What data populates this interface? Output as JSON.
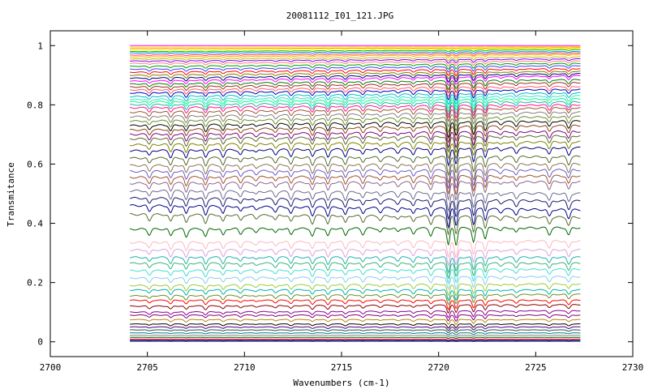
{
  "chart_data": {
    "type": "line",
    "title": "20081112_I01_121.JPG",
    "xlabel": "Wavenumbers (cm-1)",
    "ylabel": "Transmitance",
    "xlim": [
      2700,
      2730
    ],
    "ylim": [
      -0.05,
      1.05
    ],
    "x_ticks": [
      "2700",
      "2705",
      "2710",
      "2715",
      "2720",
      "2725",
      "2730"
    ],
    "y_ticks": [
      "0",
      "0.2",
      "0.4",
      "0.6",
      "0.8",
      "1"
    ],
    "x_range": [
      2704.1,
      2727.3
    ],
    "grid": false,
    "legend": "none",
    "absorption_lines_cm1": [
      2705.1,
      2706.2,
      2707.0,
      2708.0,
      2708.9,
      2709.8,
      2710.6,
      2711.6,
      2712.4,
      2713.5,
      2714.3,
      2715.2,
      2716.1,
      2717.0,
      2717.9,
      2718.7,
      2719.6,
      2720.5,
      2720.9,
      2721.8,
      2722.4,
      2723.2,
      2724.0,
      2725.7,
      2726.7
    ],
    "series_baselines": [
      {
        "base": 1.0,
        "end": 1.0,
        "color": "#ff00ff"
      },
      {
        "base": 0.995,
        "end": 0.997,
        "color": "#ffd700"
      },
      {
        "base": 0.99,
        "end": 0.993,
        "color": "#ff8c00"
      },
      {
        "base": 0.985,
        "end": 0.99,
        "color": "#ffff00"
      },
      {
        "base": 0.98,
        "end": 0.986,
        "color": "#00c000"
      },
      {
        "base": 0.975,
        "end": 0.98,
        "color": "#0080ff"
      },
      {
        "base": 0.968,
        "end": 0.975,
        "color": "#ff4040"
      },
      {
        "base": 0.962,
        "end": 0.97,
        "color": "#ffa500"
      },
      {
        "base": 0.955,
        "end": 0.962,
        "color": "#c0c000"
      },
      {
        "base": 0.948,
        "end": 0.955,
        "color": "#8000ff"
      },
      {
        "base": 0.94,
        "end": 0.948,
        "color": "#ff8080"
      },
      {
        "base": 0.93,
        "end": 0.94,
        "color": "#00a000"
      },
      {
        "base": 0.92,
        "end": 0.932,
        "color": "#4040ff"
      },
      {
        "base": 0.91,
        "end": 0.922,
        "color": "#ff0000"
      },
      {
        "base": 0.9,
        "end": 0.913,
        "color": "#808000"
      },
      {
        "base": 0.89,
        "end": 0.905,
        "color": "#000080"
      },
      {
        "base": 0.88,
        "end": 0.898,
        "color": "#ff00ff"
      },
      {
        "base": 0.87,
        "end": 0.885,
        "color": "#008000"
      },
      {
        "base": 0.86,
        "end": 0.875,
        "color": "#a52a2a"
      },
      {
        "base": 0.85,
        "end": 0.862,
        "color": "#ff6060"
      },
      {
        "base": 0.84,
        "end": 0.852,
        "color": "#0000c0"
      },
      {
        "base": 0.828,
        "end": 0.84,
        "color": "#00c0c0"
      },
      {
        "base": 0.818,
        "end": 0.83,
        "color": "#40e0d0"
      },
      {
        "base": 0.81,
        "end": 0.82,
        "color": "#00ff80"
      },
      {
        "base": 0.8,
        "end": 0.81,
        "color": "#20b2aa"
      },
      {
        "base": 0.79,
        "end": 0.8,
        "color": "#ff1493"
      },
      {
        "base": 0.775,
        "end": 0.79,
        "color": "#a0522d"
      },
      {
        "base": 0.76,
        "end": 0.775,
        "color": "#808080"
      },
      {
        "base": 0.745,
        "end": 0.76,
        "color": "#6b8e23"
      },
      {
        "base": 0.73,
        "end": 0.745,
        "color": "#000000"
      },
      {
        "base": 0.715,
        "end": 0.73,
        "color": "#8b4513"
      },
      {
        "base": 0.7,
        "end": 0.71,
        "color": "#800080"
      },
      {
        "base": 0.685,
        "end": 0.695,
        "color": "#556b2f"
      },
      {
        "base": 0.665,
        "end": 0.675,
        "color": "#808000"
      },
      {
        "base": 0.645,
        "end": 0.655,
        "color": "#000080"
      },
      {
        "base": 0.62,
        "end": 0.625,
        "color": "#556b2f"
      },
      {
        "base": 0.595,
        "end": 0.6,
        "color": "#8b7355"
      },
      {
        "base": 0.575,
        "end": 0.58,
        "color": "#6a5acd"
      },
      {
        "base": 0.555,
        "end": 0.56,
        "color": "#a0522d"
      },
      {
        "base": 0.535,
        "end": 0.54,
        "color": "#8b668b"
      },
      {
        "base": 0.51,
        "end": 0.5,
        "color": "#6b6b8e"
      },
      {
        "base": 0.485,
        "end": 0.475,
        "color": "#191970"
      },
      {
        "base": 0.46,
        "end": 0.445,
        "color": "#00008b"
      },
      {
        "base": 0.43,
        "end": 0.42,
        "color": "#556b2f"
      },
      {
        "base": 0.38,
        "end": 0.385,
        "color": "#006400"
      },
      {
        "base": 0.335,
        "end": 0.34,
        "color": "#ffb6c1"
      },
      {
        "base": 0.31,
        "end": 0.31,
        "color": "#dda0dd"
      },
      {
        "base": 0.285,
        "end": 0.285,
        "color": "#20b2aa"
      },
      {
        "base": 0.265,
        "end": 0.265,
        "color": "#3cb371"
      },
      {
        "base": 0.24,
        "end": 0.245,
        "color": "#40e0d0"
      },
      {
        "base": 0.215,
        "end": 0.22,
        "color": "#87ceeb"
      },
      {
        "base": 0.19,
        "end": 0.195,
        "color": "#9acd32"
      },
      {
        "base": 0.175,
        "end": 0.175,
        "color": "#00b0b0"
      },
      {
        "base": 0.155,
        "end": 0.16,
        "color": "#6b8e23"
      },
      {
        "base": 0.14,
        "end": 0.14,
        "color": "#ff0000"
      },
      {
        "base": 0.12,
        "end": 0.125,
        "color": "#8b0000"
      },
      {
        "base": 0.1,
        "end": 0.105,
        "color": "#8b008b"
      },
      {
        "base": 0.09,
        "end": 0.09,
        "color": "#800080"
      },
      {
        "base": 0.075,
        "end": 0.075,
        "color": "#b8860b"
      },
      {
        "base": 0.06,
        "end": 0.06,
        "color": "#000000"
      },
      {
        "base": 0.05,
        "end": 0.05,
        "color": "#4b0082"
      },
      {
        "base": 0.04,
        "end": 0.04,
        "color": "#2f4f4f"
      },
      {
        "base": 0.03,
        "end": 0.03,
        "color": "#008080"
      },
      {
        "base": 0.022,
        "end": 0.022,
        "color": "#808080"
      },
      {
        "base": 0.015,
        "end": 0.015,
        "color": "#006400"
      },
      {
        "base": 0.009,
        "end": 0.009,
        "color": "#ff0000"
      },
      {
        "base": 0.005,
        "end": 0.005,
        "color": "#0000ff"
      },
      {
        "base": 0.002,
        "end": 0.002,
        "color": "#000000"
      }
    ]
  }
}
